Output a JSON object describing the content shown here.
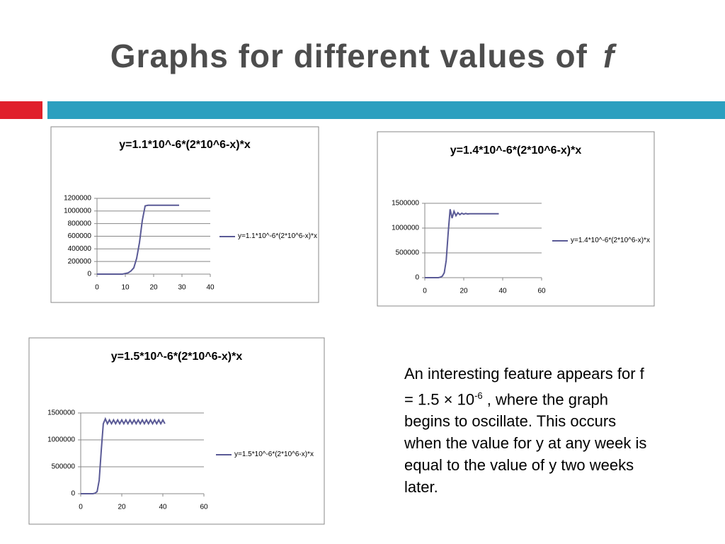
{
  "slide": {
    "title": "Graphs for different values of",
    "title_var": "f",
    "text_parts": [
      "An interesting feature appears for f = 1.5 × 10",
      "-6",
      " , where the graph begins to oscillate. This occurs when the value for y at any week is equal to the value of y two weeks later."
    ]
  },
  "chart_data": [
    {
      "type": "line",
      "title": "y=1.1*10^-6*(2*10^6-x)*x",
      "x": [
        0,
        1,
        2,
        3,
        4,
        5,
        6,
        7,
        8,
        9,
        10,
        11,
        12,
        13,
        14,
        15,
        16,
        17,
        18,
        19,
        20,
        21,
        22,
        23,
        24,
        25,
        26,
        27,
        28,
        29
      ],
      "series": [
        {
          "name": "y=1.1*10^-6*(2*10^6-x)*x",
          "color": "#5a5a96",
          "values": [
            0,
            0,
            0,
            0,
            0,
            0,
            0,
            0,
            0,
            0,
            10000,
            20000,
            50000,
            100000,
            250000,
            500000,
            850000,
            1080000,
            1090000,
            1090000,
            1090000,
            1090000,
            1090000,
            1090000,
            1090000,
            1090000,
            1090000,
            1090000,
            1090000,
            1090000
          ]
        }
      ],
      "xlim": [
        0,
        40
      ],
      "xticks": [
        0,
        10,
        20,
        30,
        40
      ],
      "ylim": [
        0,
        1200000
      ],
      "yticks": [
        0,
        200000,
        400000,
        600000,
        800000,
        1000000,
        1200000
      ],
      "grid": true
    },
    {
      "type": "line",
      "title": "y=1.4*10^-6*(2*10^6-x)*x",
      "x": [
        0,
        1,
        2,
        3,
        4,
        5,
        6,
        7,
        8,
        9,
        10,
        11,
        12,
        13,
        14,
        15,
        16,
        17,
        18,
        19,
        20,
        21,
        22,
        23,
        24,
        25,
        26,
        27,
        28,
        29,
        30,
        31,
        32,
        33,
        34,
        35,
        36,
        37,
        38
      ],
      "series": [
        {
          "name": "y=1.4*10^-6*(2*10^6-x)*x",
          "color": "#5a5a96",
          "values": [
            0,
            0,
            0,
            0,
            0,
            0,
            0,
            0,
            10000,
            30000,
            100000,
            350000,
            900000,
            1380000,
            1200000,
            1340000,
            1250000,
            1310000,
            1270000,
            1300000,
            1280000,
            1295000,
            1285000,
            1290000,
            1290000,
            1290000,
            1290000,
            1290000,
            1290000,
            1290000,
            1290000,
            1290000,
            1290000,
            1290000,
            1290000,
            1290000,
            1290000,
            1290000,
            1290000
          ]
        }
      ],
      "xlim": [
        0,
        60
      ],
      "xticks": [
        0,
        20,
        40,
        60
      ],
      "ylim": [
        0,
        1500000
      ],
      "yticks": [
        0,
        500000,
        1000000,
        1500000
      ],
      "grid": true
    },
    {
      "type": "line",
      "title": "y=1.5*10^-6*(2*10^6-x)*x",
      "x": [
        0,
        1,
        2,
        3,
        4,
        5,
        6,
        7,
        8,
        9,
        10,
        11,
        12,
        13,
        14,
        15,
        16,
        17,
        18,
        19,
        20,
        21,
        22,
        23,
        24,
        25,
        26,
        27,
        28,
        29,
        30,
        31,
        32,
        33,
        34,
        35,
        36,
        37,
        38,
        39,
        40,
        41
      ],
      "series": [
        {
          "name": "y=1.5*10^-6*(2*10^6-x)*x",
          "color": "#5a5a96",
          "values": [
            0,
            0,
            0,
            0,
            0,
            0,
            0,
            10000,
            40000,
            250000,
            800000,
            1300000,
            1390000,
            1300000,
            1370000,
            1300000,
            1370000,
            1300000,
            1370000,
            1300000,
            1370000,
            1300000,
            1370000,
            1300000,
            1370000,
            1300000,
            1370000,
            1300000,
            1370000,
            1300000,
            1370000,
            1300000,
            1370000,
            1300000,
            1370000,
            1300000,
            1370000,
            1300000,
            1370000,
            1300000,
            1370000,
            1300000
          ]
        }
      ],
      "xlim": [
        0,
        60
      ],
      "xticks": [
        0,
        20,
        40,
        60
      ],
      "ylim": [
        0,
        1500000
      ],
      "yticks": [
        0,
        500000,
        1000000,
        1500000
      ],
      "grid": true
    }
  ]
}
